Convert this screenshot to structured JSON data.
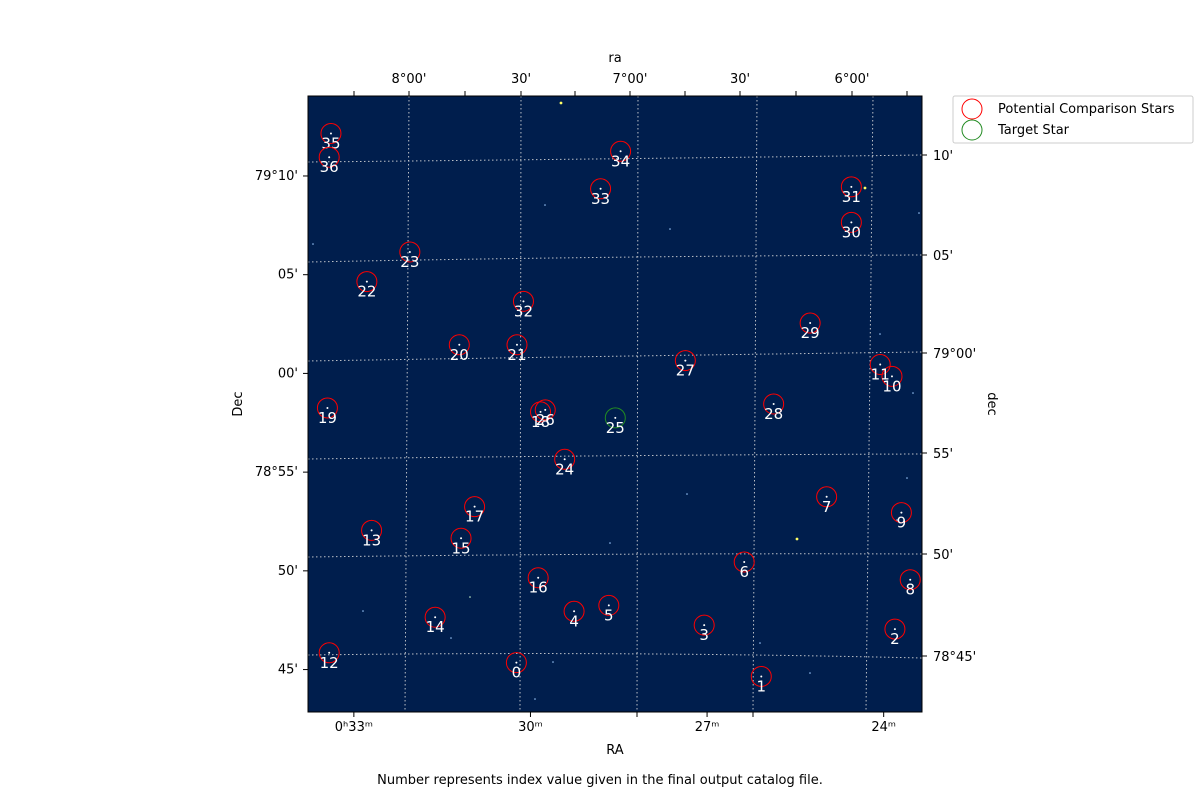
{
  "caption": "Number represents index value given in the final output catalog file.",
  "colors": {
    "background": "#001e4d",
    "comparison": "#ff0000",
    "target": "#228b22",
    "label": "#ffffff",
    "grid": "#dddddd"
  },
  "chart_data": {
    "type": "scatter",
    "title": "",
    "axes": {
      "bottom_label": "RA",
      "left_label": "Dec",
      "top_label": "ra",
      "right_label": "dec"
    },
    "xlim_ra_minutes": [
      33.83,
      23.4
    ],
    "ylim_dec_arcmin": [
      42.8,
      74.0
    ],
    "dec_base": "78°",
    "bottom_ticks": [
      {
        "label": "0ʰ33ᵐ",
        "ra_min": 33.0
      },
      {
        "label": "30ᵐ",
        "ra_min": 30.0
      },
      {
        "label": "27ᵐ",
        "ra_min": 27.0
      },
      {
        "label": "24ᵐ",
        "ra_min": 24.0
      }
    ],
    "left_ticks": [
      {
        "label": "79°10'",
        "dec_arcmin": 70
      },
      {
        "label": "05'",
        "dec_arcmin": 65
      },
      {
        "label": "00'",
        "dec_arcmin": 60
      },
      {
        "label": "78°55'",
        "dec_arcmin": 55
      },
      {
        "label": "50'",
        "dec_arcmin": 50
      },
      {
        "label": "45'",
        "dec_arcmin": 45
      }
    ],
    "top_ticks": [
      "8°00'",
      "30'",
      "7°00'",
      "30'",
      "6°00'"
    ],
    "right_ticks": [
      "10'",
      "05'",
      "79°00'",
      "55'",
      "50'",
      "78°45'"
    ],
    "legend": {
      "position": "upper-right-outside",
      "entries": [
        "Potential Comparison Stars",
        "Target Star"
      ]
    },
    "series": [
      {
        "name": "Potential Comparison Stars",
        "marker": "circle",
        "points": [
          {
            "index": "0",
            "ra_min": 30.29,
            "dec_arcmin": 45.3
          },
          {
            "index": "1",
            "ra_min": 26.13,
            "dec_arcmin": 44.6
          },
          {
            "index": "2",
            "ra_min": 23.86,
            "dec_arcmin": 47.0
          },
          {
            "index": "3",
            "ra_min": 27.1,
            "dec_arcmin": 47.2
          },
          {
            "index": "4",
            "ra_min": 29.31,
            "dec_arcmin": 47.9
          },
          {
            "index": "5",
            "ra_min": 28.72,
            "dec_arcmin": 48.2
          },
          {
            "index": "6",
            "ra_min": 26.42,
            "dec_arcmin": 50.4
          },
          {
            "index": "7",
            "ra_min": 25.02,
            "dec_arcmin": 53.7
          },
          {
            "index": "8",
            "ra_min": 23.6,
            "dec_arcmin": 49.5
          },
          {
            "index": "9",
            "ra_min": 23.75,
            "dec_arcmin": 52.9
          },
          {
            "index": "10",
            "ra_min": 23.91,
            "dec_arcmin": 59.8
          },
          {
            "index": "11",
            "ra_min": 24.11,
            "dec_arcmin": 60.4
          },
          {
            "index": "12",
            "ra_min": 33.47,
            "dec_arcmin": 45.8
          },
          {
            "index": "13",
            "ra_min": 32.75,
            "dec_arcmin": 52.0
          },
          {
            "index": "14",
            "ra_min": 31.67,
            "dec_arcmin": 47.6
          },
          {
            "index": "15",
            "ra_min": 31.23,
            "dec_arcmin": 51.6
          },
          {
            "index": "16",
            "ra_min": 29.92,
            "dec_arcmin": 49.6
          },
          {
            "index": "17",
            "ra_min": 31.0,
            "dec_arcmin": 53.2
          },
          {
            "index": "18",
            "ra_min": 29.88,
            "dec_arcmin": 58.0
          },
          {
            "index": "19",
            "ra_min": 33.5,
            "dec_arcmin": 58.2
          },
          {
            "index": "20",
            "ra_min": 31.26,
            "dec_arcmin": 61.4
          },
          {
            "index": "21",
            "ra_min": 30.28,
            "dec_arcmin": 61.4
          },
          {
            "index": "22",
            "ra_min": 32.83,
            "dec_arcmin": 64.6
          },
          {
            "index": "23",
            "ra_min": 32.1,
            "dec_arcmin": 66.1
          },
          {
            "index": "24",
            "ra_min": 29.47,
            "dec_arcmin": 55.6
          },
          {
            "index": "26",
            "ra_min": 29.8,
            "dec_arcmin": 58.1
          },
          {
            "index": "27",
            "ra_min": 27.42,
            "dec_arcmin": 60.6
          },
          {
            "index": "28",
            "ra_min": 25.92,
            "dec_arcmin": 58.4
          },
          {
            "index": "29",
            "ra_min": 25.3,
            "dec_arcmin": 62.5
          },
          {
            "index": "30",
            "ra_min": 24.6,
            "dec_arcmin": 67.6
          },
          {
            "index": "31",
            "ra_min": 24.6,
            "dec_arcmin": 69.4
          },
          {
            "index": "32",
            "ra_min": 30.17,
            "dec_arcmin": 63.6
          },
          {
            "index": "33",
            "ra_min": 28.86,
            "dec_arcmin": 69.3
          },
          {
            "index": "34",
            "ra_min": 28.52,
            "dec_arcmin": 71.2
          },
          {
            "index": "35",
            "ra_min": 33.44,
            "dec_arcmin": 72.1
          },
          {
            "index": "36",
            "ra_min": 33.47,
            "dec_arcmin": 70.9
          }
        ]
      },
      {
        "name": "Target Star",
        "marker": "circle",
        "points": [
          {
            "index": "25",
            "ra_min": 28.61,
            "dec_arcmin": 57.7
          }
        ]
      }
    ]
  }
}
